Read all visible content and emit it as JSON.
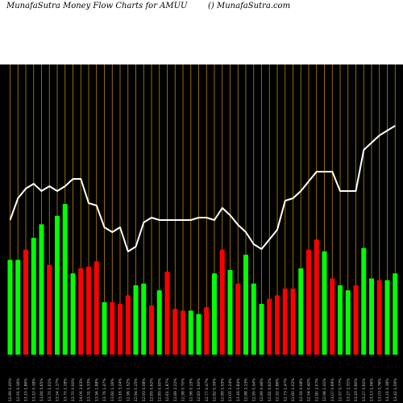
{
  "header": {
    "title_left": "MunafaSutra  Money Flow  Charts for AMUU",
    "title_right": "() MunafaSutra.com"
  },
  "colors": {
    "background": "#000000",
    "up": "#00ff00",
    "down": "#ff0000",
    "line": "#ffffff",
    "grid": "#b8860b",
    "header_bg": "#ffffff"
  },
  "chart_data": {
    "type": "bar",
    "title": "MunafaSutra  Money Flow  Charts for AMUU",
    "grid": "vertical",
    "bar_ylim": [
      0,
      100
    ],
    "line_ylim": [
      0,
      100
    ],
    "categories": [
      "12.89 0.00%",
      "12.91 0.16%",
      "13.15 1.86%",
      "13.10 0.38%",
      "13.84 5.65%",
      "13.70 1.01%",
      "13.54 1.17%",
      "13.70 1.18%",
      "13.70 0.00%",
      "14.06 2.63%",
      "13.31 5.33%",
      "13.56 1.88%",
      "13.76 1.47%",
      "13.60 1.16%",
      "13.16 3.24%",
      "12.96 1.52%",
      "12.94 0.15%",
      "12.93 0.08%",
      "12.85 0.62%",
      "12.85 0.00%",
      "12.61 1.87%",
      "12.89 2.22%",
      "12.98 0.70%",
      "12.96 0.15%",
      "12.83 1.00%",
      "12.77 0.47%",
      "12.82 0.39%",
      "12.89 0.55%",
      "13.05 1.24%",
      "13.16 0.84%",
      "12.88 2.13%",
      "12.95 0.54%",
      "12.89 0.46%",
      "12.81 0.62%",
      "12.92 0.86%",
      "12.73 1.47%",
      "12.60 1.02%",
      "12.59 0.08%",
      "12.54 0.40%",
      "12.80 2.07%",
      "12.98 1.41%",
      "13.07 0.69%",
      "12.97 0.77%",
      "13.27 2.31%",
      "13.19 0.60%",
      "13.27 0.61%",
      "13.13 1.06%",
      "13.03 0.76%",
      "13.21 1.38%",
      "13.42 1.59%"
    ],
    "series": [
      {
        "values": [
          56,
          56,
          62,
          69,
          77,
          53,
          82,
          89,
          48,
          51,
          52,
          55,
          31,
          31,
          30,
          35,
          41,
          42,
          29,
          38,
          49,
          27,
          26,
          26,
          24,
          28,
          48,
          62,
          50,
          42,
          59,
          42,
          30,
          33,
          35,
          39,
          39,
          51,
          62,
          68,
          61,
          45,
          41,
          38,
          41,
          63,
          45,
          44,
          44,
          48
        ],
        "colors": [
          "green",
          "green",
          "red",
          "green",
          "green",
          "red",
          "green",
          "green",
          "green",
          "red",
          "red",
          "red",
          "green",
          "red",
          "red",
          "red",
          "green",
          "green",
          "red",
          "green",
          "red",
          "red",
          "red",
          "green",
          "green",
          "red",
          "green",
          "red",
          "green",
          "red",
          "green",
          "green",
          "green",
          "red",
          "red",
          "red",
          "red",
          "green",
          "red",
          "red",
          "green",
          "red",
          "green",
          "green",
          "red",
          "green",
          "green",
          "red",
          "green",
          "green"
        ]
      },
      {
        "values": [
          49,
          58,
          62,
          64,
          61,
          63,
          61,
          63,
          66,
          66,
          56,
          55,
          46,
          44,
          46,
          36,
          38,
          48,
          50,
          49,
          49,
          49,
          49,
          49,
          50,
          50,
          49,
          54,
          51,
          47,
          44,
          39,
          37,
          41,
          45,
          57,
          58,
          61,
          65,
          69,
          69,
          69,
          61,
          61,
          61,
          78,
          81,
          84,
          86,
          88
        ],
        "y_fraction": [
          0.49,
          0.58,
          0.62,
          0.64,
          0.61,
          0.63,
          0.61,
          0.63,
          0.66,
          0.66,
          0.56,
          0.55,
          0.46,
          0.44,
          0.46,
          0.36,
          0.38,
          0.48,
          0.5,
          0.49,
          0.49,
          0.49,
          0.49,
          0.49,
          0.5,
          0.5,
          0.49,
          0.54,
          0.51,
          0.47,
          0.44,
          0.39,
          0.37,
          0.41,
          0.45,
          0.57,
          0.58,
          0.61,
          0.65,
          0.69,
          0.69,
          0.69,
          0.61,
          0.61,
          0.61,
          0.78,
          0.81,
          0.84,
          0.86,
          0.88
        ]
      }
    ],
    "bar_values_px": [
      [
        0,
        173
      ],
      [
        1,
        200
      ],
      [
        2,
        75
      ],
      [
        3,
        202
      ],
      [
        4,
        187
      ],
      [
        5,
        32
      ],
      [
        6,
        33
      ],
      [
        7,
        12
      ],
      [
        8,
        113
      ],
      [
        9,
        18
      ],
      [
        10,
        17
      ],
      [
        11,
        60
      ],
      [
        12,
        126
      ],
      [
        13,
        117
      ],
      [
        14,
        56
      ],
      [
        15,
        192
      ],
      [
        16,
        65
      ],
      [
        17,
        131
      ],
      [
        18,
        69
      ],
      [
        19,
        69
      ],
      [
        20,
        10
      ],
      [
        21,
        11
      ],
      [
        22,
        93
      ],
      [
        23,
        30
      ],
      [
        24,
        32
      ],
      [
        25,
        115
      ],
      [
        26,
        146
      ],
      [
        27,
        161
      ],
      [
        28,
        55
      ],
      [
        29,
        89
      ],
      [
        30,
        72
      ],
      [
        31,
        73
      ],
      [
        32,
        105
      ],
      [
        33,
        143
      ],
      [
        34,
        75
      ],
      [
        35,
        41
      ],
      [
        36,
        68
      ],
      [
        37,
        108
      ],
      [
        38,
        217
      ],
      [
        39,
        48
      ],
      [
        40,
        38
      ]
    ]
  }
}
